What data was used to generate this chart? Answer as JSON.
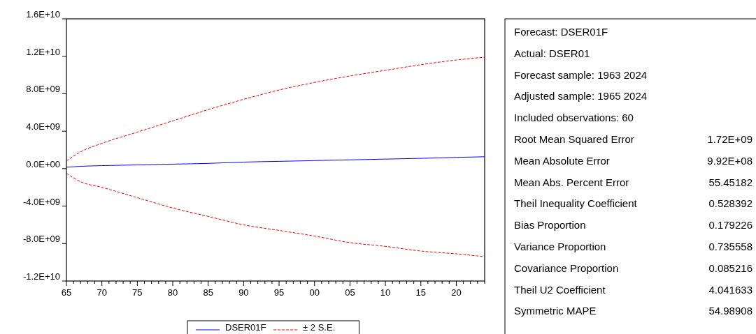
{
  "chart_data": [
    {
      "type": "line",
      "x": [
        1965,
        1967,
        1970,
        1975,
        1980,
        1985,
        1990,
        1995,
        2000,
        2005,
        2010,
        2015,
        2020,
        2024
      ],
      "xlim": [
        1965,
        2024
      ],
      "xticks": [
        {
          "value": 1965,
          "label": "65"
        },
        {
          "value": 1966,
          "label": null
        },
        {
          "value": 1967,
          "label": null
        },
        {
          "value": 1968,
          "label": null
        },
        {
          "value": 1969,
          "label": null
        },
        {
          "value": 1970,
          "label": "70"
        },
        {
          "value": 1971,
          "label": null
        },
        {
          "value": 1972,
          "label": null
        },
        {
          "value": 1973,
          "label": null
        },
        {
          "value": 1974,
          "label": null
        },
        {
          "value": 1975,
          "label": "75"
        },
        {
          "value": 1976,
          "label": null
        },
        {
          "value": 1977,
          "label": null
        },
        {
          "value": 1978,
          "label": null
        },
        {
          "value": 1979,
          "label": null
        },
        {
          "value": 1980,
          "label": "80"
        },
        {
          "value": 1981,
          "label": null
        },
        {
          "value": 1982,
          "label": null
        },
        {
          "value": 1983,
          "label": null
        },
        {
          "value": 1984,
          "label": null
        },
        {
          "value": 1985,
          "label": "85"
        },
        {
          "value": 1986,
          "label": null
        },
        {
          "value": 1987,
          "label": null
        },
        {
          "value": 1988,
          "label": null
        },
        {
          "value": 1989,
          "label": null
        },
        {
          "value": 1990,
          "label": "90"
        },
        {
          "value": 1991,
          "label": null
        },
        {
          "value": 1992,
          "label": null
        },
        {
          "value": 1993,
          "label": null
        },
        {
          "value": 1994,
          "label": null
        },
        {
          "value": 1995,
          "label": "95"
        },
        {
          "value": 1996,
          "label": null
        },
        {
          "value": 1997,
          "label": null
        },
        {
          "value": 1998,
          "label": null
        },
        {
          "value": 1999,
          "label": null
        },
        {
          "value": 2000,
          "label": "00"
        },
        {
          "value": 2001,
          "label": null
        },
        {
          "value": 2002,
          "label": null
        },
        {
          "value": 2003,
          "label": null
        },
        {
          "value": 2004,
          "label": null
        },
        {
          "value": 2005,
          "label": "05"
        },
        {
          "value": 2006,
          "label": null
        },
        {
          "value": 2007,
          "label": null
        },
        {
          "value": 2008,
          "label": null
        },
        {
          "value": 2009,
          "label": null
        },
        {
          "value": 2010,
          "label": "10"
        },
        {
          "value": 2011,
          "label": null
        },
        {
          "value": 2012,
          "label": null
        },
        {
          "value": 2013,
          "label": null
        },
        {
          "value": 2014,
          "label": null
        },
        {
          "value": 2015,
          "label": "15"
        },
        {
          "value": 2016,
          "label": null
        },
        {
          "value": 2017,
          "label": null
        },
        {
          "value": 2018,
          "label": null
        },
        {
          "value": 2019,
          "label": null
        },
        {
          "value": 2020,
          "label": "20"
        },
        {
          "value": 2021,
          "label": null
        },
        {
          "value": 2022,
          "label": null
        },
        {
          "value": 2023,
          "label": null
        },
        {
          "value": 2024,
          "label": null
        }
      ],
      "ylim": [
        -12000000000,
        16000000000
      ],
      "yticks": [
        {
          "value": -12000000000,
          "label": "-1.2E+10"
        },
        {
          "value": -8000000000,
          "label": "-8.0E+09"
        },
        {
          "value": -4000000000,
          "label": "-4.0E+09"
        },
        {
          "value": 0,
          "label": "0.0E+00"
        },
        {
          "value": 4000000000,
          "label": "4.0E+09"
        },
        {
          "value": 8000000000,
          "label": "8.0E+09"
        },
        {
          "value": 12000000000,
          "label": "1.2E+10"
        },
        {
          "value": 16000000000,
          "label": "1.6E+10"
        }
      ],
      "series": [
        {
          "name": "DSER01F",
          "color": "#0000ff",
          "line_style": "solid",
          "values": [
            150000000,
            250000000,
            320000000,
            400000000,
            480000000,
            560000000,
            700000000,
            780000000,
            860000000,
            940000000,
            1020000000,
            1100000000,
            1200000000,
            1270000000
          ]
        },
        {
          "name": "± 2 S.E.",
          "color": "#ff0000",
          "line_style": "dashed",
          "values": [
            820000000,
            1800000000,
            2700000000,
            3900000000,
            5100000000,
            6300000000,
            7400000000,
            8400000000,
            9200000000,
            9900000000,
            10500000000,
            11100000000,
            11600000000,
            11900000000
          ]
        },
        {
          "color": "#ff0000",
          "line_style": "dashed",
          "values": [
            -500000000,
            -1400000000,
            -2000000000,
            -3100000000,
            -4200000000,
            -5100000000,
            -6000000000,
            -6600000000,
            -7200000000,
            -7900000000,
            -8300000000,
            -8800000000,
            -9100000000,
            -9400000000
          ]
        }
      ],
      "legend": "bottom",
      "grid": false
    },
    {
      "type": "other",
      "categories": [
        "Forecast: DSER01F",
        "Actual: DSER01",
        "Forecast sample: 1963 2024",
        "Adjusted sample: 1965 2024",
        "Included observations: 60",
        "Root Mean Squared Error",
        "Mean Absolute Error",
        "Mean Abs. Percent Error",
        "Theil Inequality Coefficient",
        "Bias Proportion",
        "Variance Proportion",
        "Covariance Proportion",
        "Theil U2 Coefficient",
        "Symmetric MAPE"
      ],
      "value_labels": [
        null,
        null,
        null,
        null,
        null,
        "1.72E+09",
        "9.92E+08",
        "55.45182",
        "0.528392",
        "0.179226",
        "0.735558",
        "0.085216",
        "4.041633",
        "54.98908"
      ]
    }
  ]
}
